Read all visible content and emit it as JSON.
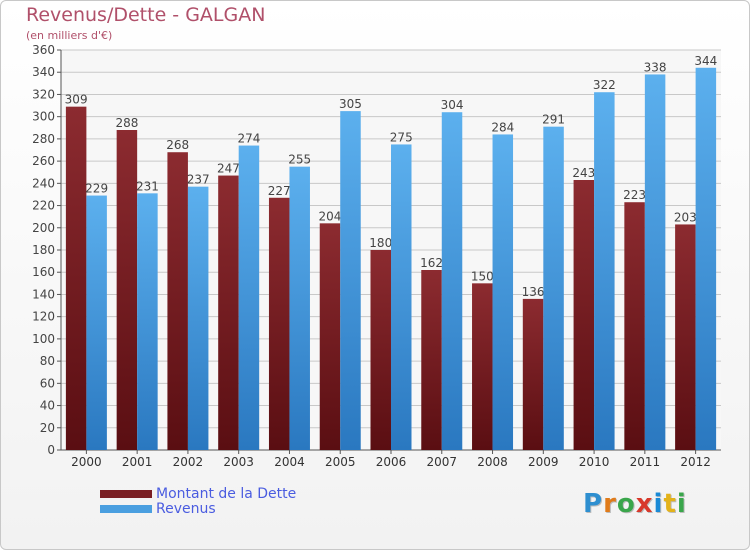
{
  "title": "Revenus/Dette - GALGAN",
  "subtitle": "(en milliers d'€)",
  "logo": {
    "text": "Proxiti",
    "letter_colors": [
      "#2e8fd0",
      "#e07b1a",
      "#3aa64b",
      "#d8392b",
      "#1a8ad6",
      "#e3b21a",
      "#3aa64b"
    ]
  },
  "colors": {
    "dette": "#7a1f24",
    "revenus": "#4a9fe0",
    "label": "#444444",
    "grid": "#c8c8c8"
  },
  "chart_data": {
    "type": "bar",
    "title": "Revenus/Dette - GALGAN",
    "subtitle": "(en milliers d'€)",
    "categories": [
      "2000",
      "2001",
      "2002",
      "2003",
      "2004",
      "2005",
      "2006",
      "2007",
      "2008",
      "2009",
      "2010",
      "2011",
      "2012"
    ],
    "series": [
      {
        "name": "Montant de la Dette",
        "values": [
          309,
          288,
          268,
          247,
          227,
          204,
          180,
          162,
          150,
          136,
          243,
          223,
          203
        ]
      },
      {
        "name": "Revenus",
        "values": [
          229,
          231,
          237,
          274,
          255,
          305,
          275,
          304,
          284,
          291,
          322,
          338,
          344
        ]
      }
    ],
    "ylim": [
      0,
      360
    ],
    "yticks": [
      0,
      20,
      40,
      60,
      80,
      100,
      120,
      140,
      160,
      180,
      200,
      220,
      240,
      260,
      280,
      300,
      320,
      340,
      360
    ],
    "grid": true,
    "legend_position": "bottom-left"
  }
}
